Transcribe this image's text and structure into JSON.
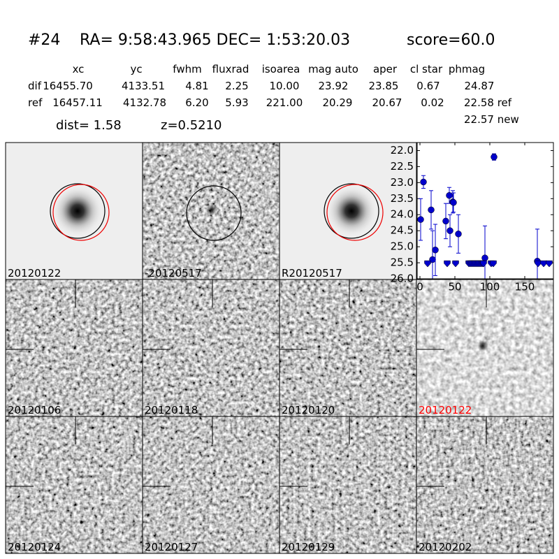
{
  "header": {
    "id": "#24",
    "coords": "RA= 9:58:43.965 DEC= 1:53:20.03",
    "score": "score=60.0"
  },
  "table": {
    "columns": [
      "xc",
      "yc",
      "fwhm",
      "fluxrad",
      "isoarea",
      "mag auto",
      "aper",
      "cl star",
      "phmag"
    ],
    "rows": [
      [
        "dif",
        "16455.70",
        "4133.51",
        "4.81",
        "2.25",
        "10.00",
        "23.92",
        "23.85",
        "0.67",
        "24.87"
      ],
      [
        "ref",
        "16457.11",
        "4132.78",
        "6.20",
        "5.93",
        "221.00",
        "20.29",
        "20.67",
        "0.02",
        "22.58 ref"
      ]
    ],
    "extra": "22.57 new"
  },
  "dist": "dist=  1.58",
  "z": "z=0.5210",
  "stamps": [
    {
      "label": "20120122"
    },
    {
      "label": "-20120517"
    },
    {
      "label": "R20120517"
    },
    {
      "label": "20120106"
    },
    {
      "label": "20120118"
    },
    {
      "label": "20120120"
    },
    {
      "label": "20120122",
      "color": "#ff0000"
    },
    {
      "label": "20120124"
    },
    {
      "label": "20120127"
    },
    {
      "label": "20120129"
    },
    {
      "label": "20120202"
    }
  ],
  "chart_data": {
    "type": "scatter",
    "xlim": [
      -4,
      191
    ],
    "xticks": [
      0,
      50,
      100,
      150
    ],
    "ylim": [
      26.0,
      21.75
    ],
    "yticks": [
      {
        "value": 22.0,
        "label": "22.0"
      },
      {
        "value": 22.5,
        "label": "22.5"
      },
      {
        "value": 23.0,
        "label": "23.0"
      },
      {
        "value": 23.5,
        "label": "23.5"
      },
      {
        "value": 24.0,
        "label": "24.0"
      },
      {
        "value": 24.5,
        "label": "24.5"
      },
      {
        "value": 25.0,
        "label": "25.0"
      },
      {
        "value": 25.5,
        "label": "25.5"
      },
      {
        "value": 26.0,
        "label": "26.0"
      }
    ],
    "inverted_y": true,
    "series": [
      {
        "color": "#0000cc",
        "marker": "circle",
        "x": [
          1,
          5,
          16,
          18,
          22,
          37,
          42,
          43,
          47,
          48,
          55,
          93,
          106,
          168
        ],
        "values": [
          24.15,
          22.98,
          23.85,
          25.4,
          25.1,
          24.2,
          23.4,
          24.5,
          23.6,
          23.62,
          24.6,
          25.35,
          22.2,
          25.45
        ],
        "errors": [
          0.65,
          0.2,
          0.6,
          0.9,
          0.8,
          0.55,
          0.25,
          0.5,
          0.35,
          0.3,
          0.6,
          1.0,
          0.1,
          1.0
        ]
      },
      {
        "color": "#0000cc",
        "marker": "limit",
        "x": [
          11,
          39,
          51,
          70,
          72,
          74,
          76,
          78,
          80,
          82,
          84,
          86,
          88,
          90,
          91,
          102,
          105,
          169,
          177,
          185
        ],
        "values": [
          25.5,
          25.5,
          25.5,
          25.5,
          25.5,
          25.5,
          25.5,
          25.5,
          25.5,
          25.5,
          25.5,
          25.5,
          25.5,
          25.5,
          25.5,
          25.5,
          25.5,
          25.5,
          25.5,
          25.5
        ]
      }
    ]
  }
}
